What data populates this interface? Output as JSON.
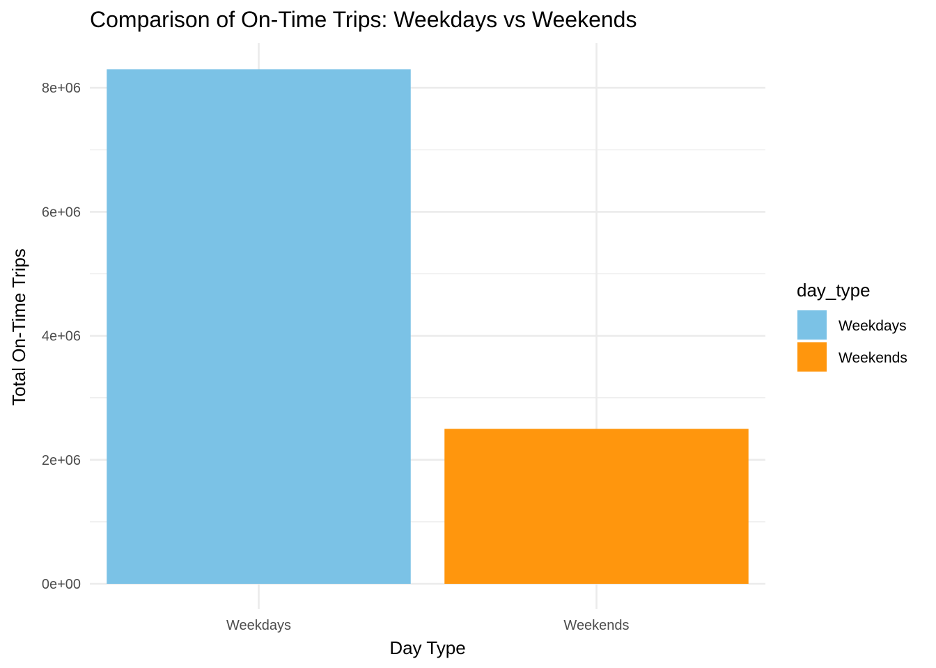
{
  "chart_data": {
    "type": "bar",
    "title": "Comparison of On-Time Trips: Weekdays vs Weekends",
    "xlabel": "Day Type",
    "ylabel": "Total On-Time Trips",
    "categories": [
      "Weekdays",
      "Weekends"
    ],
    "values": [
      8300000,
      2500000
    ],
    "colors": [
      "#7BC2E6",
      "#FF960D"
    ],
    "ylim": [
      0,
      8500000
    ],
    "yticks": [
      0,
      2000000,
      4000000,
      6000000,
      8000000
    ],
    "ytick_labels": [
      "0e+00",
      "2e+06",
      "4e+06",
      "6e+06",
      "8e+06"
    ],
    "grid": true,
    "legend": {
      "title": "day_type",
      "position": "right",
      "entries": [
        "Weekdays",
        "Weekends"
      ]
    }
  }
}
